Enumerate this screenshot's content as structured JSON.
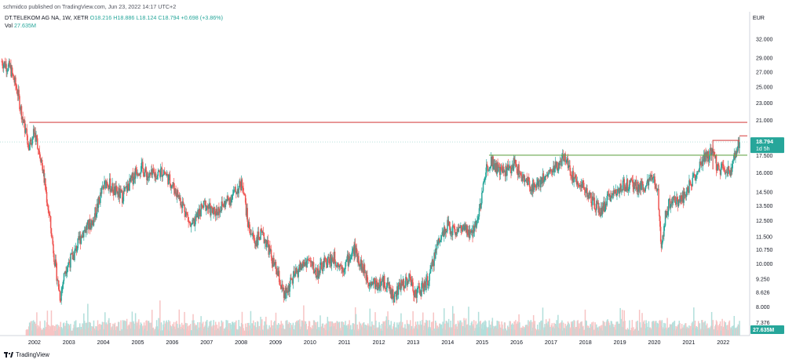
{
  "header": {
    "published": "schmidco published on TradingView.com, Jun 23, 2022 14:17 UTC+2",
    "symbol": "DT.TELEKOM AG NA, 1W, XETR",
    "ohlc": "O18.216 H18.886 L18.124 C18.794 +0.698 (+3.86%)",
    "vol_label": "Vol",
    "vol_value": "27.635M",
    "currency": "EUR"
  },
  "footer": {
    "brand": "TradingView"
  },
  "colors": {
    "up": "#26a69a",
    "down": "#ef5350",
    "vol_up": "#b2dfdb",
    "vol_down": "#f7c4c4",
    "resistance": "#d84b4b",
    "support": "#6aa84f",
    "price_line": "#8fcfc8"
  },
  "chart_data": {
    "type": "candlestick",
    "title": "DT.TELEKOM AG NA, 1W, XETR",
    "x_ticks": [
      "2002",
      "2003",
      "2004",
      "2005",
      "2006",
      "2007",
      "2008",
      "2009",
      "2010",
      "2011",
      "2012",
      "2013",
      "2014",
      "2015",
      "2016",
      "2017",
      "2018",
      "2019",
      "2020",
      "2021",
      "2022"
    ],
    "y_ticks": [
      "32.000",
      "29.000",
      "27.000",
      "25.000",
      "23.000",
      "21.000",
      "17.500",
      "16.000",
      "14.500",
      "13.500",
      "12.500",
      "11.500",
      "10.750",
      "10.000",
      "9.250",
      "8.626",
      "8.000",
      "7.376"
    ],
    "y_scale": "log",
    "ylim": [
      6.9,
      34
    ],
    "xlim": [
      2001.0,
      2022.7
    ],
    "approx_close_path": [
      [
        2001.05,
        28.5
      ],
      [
        2001.3,
        27.5
      ],
      [
        2001.5,
        24.5
      ],
      [
        2001.7,
        20.5
      ],
      [
        2001.85,
        18.5
      ],
      [
        2002.0,
        19.8
      ],
      [
        2002.2,
        17.2
      ],
      [
        2002.45,
        12.5
      ],
      [
        2002.6,
        10.0
      ],
      [
        2002.75,
        8.4
      ],
      [
        2002.9,
        9.8
      ],
      [
        2003.15,
        10.5
      ],
      [
        2003.4,
        11.8
      ],
      [
        2003.7,
        12.5
      ],
      [
        2003.95,
        14.5
      ],
      [
        2004.1,
        15.4
      ],
      [
        2004.3,
        14.6
      ],
      [
        2004.55,
        14.2
      ],
      [
        2004.8,
        15.3
      ],
      [
        2004.95,
        16.2
      ],
      [
        2005.1,
        16.5
      ],
      [
        2005.3,
        15.7
      ],
      [
        2005.55,
        15.9
      ],
      [
        2005.75,
        16.2
      ],
      [
        2005.9,
        15.5
      ],
      [
        2006.1,
        14.6
      ],
      [
        2006.35,
        13.4
      ],
      [
        2006.55,
        12.0
      ],
      [
        2006.75,
        12.9
      ],
      [
        2006.95,
        13.6
      ],
      [
        2007.2,
        13.0
      ],
      [
        2007.45,
        13.5
      ],
      [
        2007.7,
        14.1
      ],
      [
        2007.95,
        14.9
      ],
      [
        2008.05,
        15.2
      ],
      [
        2008.2,
        12.3
      ],
      [
        2008.4,
        11.2
      ],
      [
        2008.55,
        11.6
      ],
      [
        2008.75,
        11.2
      ],
      [
        2008.9,
        10.2
      ],
      [
        2009.1,
        9.3
      ],
      [
        2009.25,
        8.4
      ],
      [
        2009.45,
        9.1
      ],
      [
        2009.7,
        9.8
      ],
      [
        2009.95,
        10.2
      ],
      [
        2010.2,
        9.5
      ],
      [
        2010.45,
        10.1
      ],
      [
        2010.7,
        10.3
      ],
      [
        2010.95,
        9.8
      ],
      [
        2011.1,
        10.2
      ],
      [
        2011.3,
        10.8
      ],
      [
        2011.5,
        9.9
      ],
      [
        2011.7,
        9.2
      ],
      [
        2011.95,
        9.0
      ],
      [
        2012.2,
        9.1
      ],
      [
        2012.45,
        8.4
      ],
      [
        2012.65,
        9.0
      ],
      [
        2012.9,
        9.3
      ],
      [
        2013.05,
        8.6
      ],
      [
        2013.25,
        8.8
      ],
      [
        2013.45,
        9.2
      ],
      [
        2013.7,
        11.1
      ],
      [
        2013.95,
        12.2
      ],
      [
        2014.15,
        11.9
      ],
      [
        2014.4,
        12.0
      ],
      [
        2014.7,
        11.6
      ],
      [
        2014.95,
        13.5
      ],
      [
        2015.1,
        16.2
      ],
      [
        2015.25,
        17.2
      ],
      [
        2015.5,
        16.1
      ],
      [
        2015.8,
        16.3
      ],
      [
        2015.95,
        16.9
      ],
      [
        2016.15,
        15.6
      ],
      [
        2016.45,
        14.9
      ],
      [
        2016.7,
        15.4
      ],
      [
        2016.95,
        16.1
      ],
      [
        2017.2,
        16.6
      ],
      [
        2017.45,
        17.5
      ],
      [
        2017.6,
        15.8
      ],
      [
        2017.85,
        15.3
      ],
      [
        2018.05,
        14.4
      ],
      [
        2018.25,
        13.6
      ],
      [
        2018.45,
        13.1
      ],
      [
        2018.7,
        14.2
      ],
      [
        2018.95,
        14.8
      ],
      [
        2019.2,
        15.1
      ],
      [
        2019.45,
        15.0
      ],
      [
        2019.7,
        14.9
      ],
      [
        2019.95,
        15.5
      ],
      [
        2020.1,
        14.8
      ],
      [
        2020.2,
        11.0
      ],
      [
        2020.35,
        13.2
      ],
      [
        2020.55,
        14.2
      ],
      [
        2020.75,
        13.8
      ],
      [
        2020.95,
        14.7
      ],
      [
        2021.2,
        15.9
      ],
      [
        2021.45,
        17.2
      ],
      [
        2021.7,
        17.9
      ],
      [
        2021.85,
        16.2
      ],
      [
        2022.05,
        16.5
      ],
      [
        2022.2,
        15.8
      ],
      [
        2022.35,
        17.6
      ],
      [
        2022.48,
        18.794
      ]
    ],
    "last_volume_label": "27.635M",
    "annotations": {
      "resistance_level": 20.8,
      "support_level": 17.55,
      "support_start": 2015.2,
      "box_top": 18.95,
      "box_start": 2021.7,
      "current_price_label": "18.794",
      "countdown_label": "1d 5h"
    }
  }
}
